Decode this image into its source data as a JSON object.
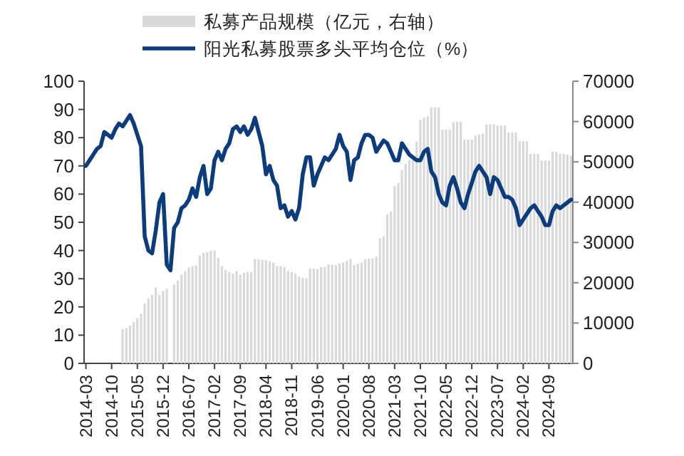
{
  "chart_data": {
    "type": "bar",
    "categories": [
      "2014-03",
      null,
      null,
      null,
      null,
      null,
      null,
      "2014-10",
      null,
      null,
      null,
      null,
      null,
      null,
      "2015-05",
      null,
      null,
      null,
      null,
      null,
      null,
      "2015-12",
      null,
      null,
      null,
      null,
      null,
      null,
      "2016-07",
      null,
      null,
      null,
      null,
      null,
      null,
      "2017-02",
      null,
      null,
      null,
      null,
      null,
      null,
      "2017-09",
      null,
      null,
      null,
      null,
      null,
      null,
      "2018-04",
      null,
      null,
      null,
      null,
      null,
      null,
      "2018-11",
      null,
      null,
      null,
      null,
      null,
      null,
      "2019-06",
      null,
      null,
      null,
      null,
      null,
      null,
      "2020-01",
      null,
      null,
      null,
      null,
      null,
      null,
      "2020-08",
      null,
      null,
      null,
      null,
      null,
      null,
      "2021-03",
      null,
      null,
      null,
      null,
      null,
      null,
      "2021-10",
      null,
      null,
      null,
      null,
      null,
      null,
      "2022-05",
      null,
      null,
      null,
      null,
      null,
      null,
      "2022-12",
      null,
      null,
      null,
      null,
      null,
      null,
      "2023-07",
      null,
      null,
      null,
      null,
      null,
      null,
      "2024-02",
      null,
      null,
      null,
      null,
      null,
      null,
      "2024-09",
      null,
      null,
      null,
      null,
      null,
      null
    ],
    "series": [
      {
        "name": "私募产品规模（亿元，右轴）",
        "axis": "y2",
        "color": "#d9d9d9",
        "values": [
          null,
          null,
          null,
          null,
          null,
          null,
          null,
          null,
          null,
          null,
          8500,
          8800,
          9400,
          10200,
          11200,
          12300,
          14900,
          16100,
          17000,
          18800,
          17000,
          18000,
          18500,
          null,
          19600,
          20600,
          22000,
          22900,
          23800,
          24100,
          24300,
          26700,
          27400,
          27600,
          27900,
          28000,
          26200,
          24100,
          23200,
          22700,
          22300,
          22900,
          22000,
          22500,
          22700,
          22700,
          25900,
          25800,
          25700,
          25600,
          25300,
          25000,
          24100,
          24100,
          23900,
          22900,
          22700,
          22300,
          21500,
          21200,
          21100,
          23500,
          23500,
          23400,
          23900,
          23900,
          24600,
          24500,
          24400,
          24800,
          25000,
          25500,
          25900,
          24400,
          24700,
          25000,
          25800,
          26000,
          26000,
          26500,
          31000,
          31500,
          37000,
          37700,
          44000,
          44800,
          48000,
          49500,
          50500,
          51500,
          55000,
          60500,
          61000,
          61300,
          63500,
          63500,
          63500,
          58000,
          58000,
          58000,
          59900,
          59900,
          59900,
          55500,
          55500,
          55500,
          56500,
          56800,
          57000,
          59300,
          59300,
          59300,
          59000,
          59000,
          59000,
          57300,
          57300,
          57300,
          55100,
          55100,
          55100,
          52000,
          52000,
          52000,
          50300,
          50300,
          50300,
          52500,
          52500,
          52000,
          52000,
          51800,
          51500
        ]
      },
      {
        "name": "阳光私募股票多头平均仓位（%）",
        "type": "line",
        "color": "#0b3c7d",
        "values": [
          70,
          72,
          74,
          76,
          77,
          82,
          81,
          80,
          83,
          85,
          84,
          86,
          88,
          85,
          81,
          77,
          45,
          40,
          39,
          47,
          57,
          60,
          35,
          33,
          48,
          50,
          55,
          56,
          58,
          62,
          59,
          66,
          70,
          60,
          62,
          72,
          75,
          72,
          76,
          78,
          83,
          84,
          82,
          84,
          81,
          83,
          87,
          82,
          77,
          67,
          70,
          65,
          63,
          55,
          56,
          52,
          54,
          51,
          55,
          67,
          73,
          73,
          63,
          67,
          70,
          73,
          72,
          74,
          76,
          81,
          77,
          75,
          65,
          72,
          73,
          78,
          81,
          81,
          80,
          75,
          77,
          79,
          78,
          75,
          72,
          72,
          78,
          76,
          74,
          73,
          72,
          72,
          75,
          76,
          68,
          66,
          60,
          57,
          56,
          63,
          66,
          62,
          57,
          55,
          60,
          64,
          68,
          70,
          68,
          66,
          60,
          66,
          65,
          62,
          59,
          59,
          58,
          55,
          49,
          51,
          53,
          55,
          56,
          54,
          52,
          49,
          49,
          54,
          56,
          55,
          56,
          57,
          58
        ]
      }
    ],
    "ylim": [
      0,
      100
    ],
    "yticks": [
      0,
      10,
      20,
      30,
      40,
      50,
      60,
      70,
      80,
      90,
      100
    ],
    "y2lim": [
      0,
      70000
    ],
    "y2ticks": [
      0,
      10000,
      20000,
      30000,
      40000,
      50000,
      60000,
      70000
    ],
    "legend": "top"
  }
}
